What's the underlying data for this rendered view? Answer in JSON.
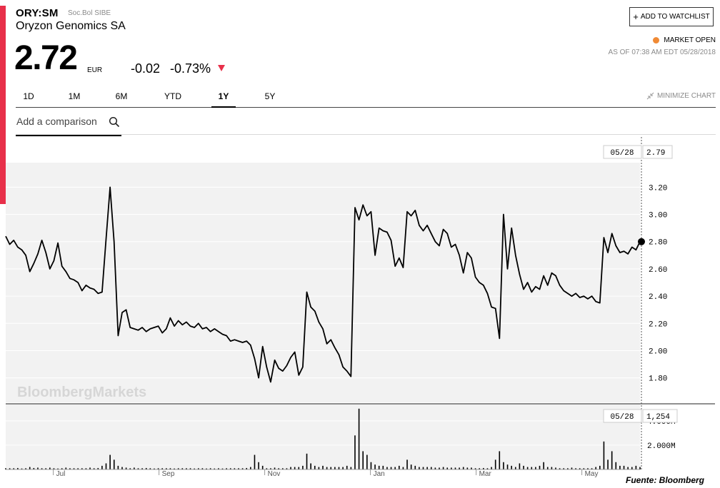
{
  "header": {
    "ticker": "ORY:SM",
    "exchange": "Soc.Bol SIBE",
    "company": "Oryzon Genomics SA",
    "price": "2.72",
    "currency": "EUR",
    "change": "-0.02",
    "change_pct": "-0.73%",
    "watchlist_label": "ADD TO WATCHLIST",
    "market_status": "MARKET OPEN",
    "as_of": "AS OF 07:38 AM EDT 05/28/2018",
    "status_color": "#f08a35",
    "down_color": "#e8304a"
  },
  "tabs": [
    {
      "label": "1D",
      "active": false
    },
    {
      "label": "1M",
      "active": false
    },
    {
      "label": "6M",
      "active": false
    },
    {
      "label": "YTD",
      "active": false
    },
    {
      "label": "1Y",
      "active": true
    },
    {
      "label": "5Y",
      "active": false
    }
  ],
  "minimize_label": "MINIMIZE CHART",
  "comparison_placeholder": "Add a comparison",
  "watermark": "BloombergMarkets",
  "source": "Fuente: Bloomberg",
  "chart_data": [
    {
      "type": "line",
      "series": [
        {
          "values": [
            2.84,
            2.78,
            2.81,
            2.76,
            2.74,
            2.7,
            2.58,
            2.64,
            2.71,
            2.81,
            2.72,
            2.6,
            2.66,
            2.79,
            2.62,
            2.58,
            2.53,
            2.52,
            2.5,
            2.44,
            2.48,
            2.46,
            2.45,
            2.42,
            2.43,
            2.82,
            3.2,
            2.8,
            2.11,
            2.28,
            2.3,
            2.17,
            2.16,
            2.15,
            2.17,
            2.14,
            2.16,
            2.17,
            2.18,
            2.13,
            2.16,
            2.24,
            2.18,
            2.22,
            2.19,
            2.21,
            2.18,
            2.17,
            2.2,
            2.16,
            2.17,
            2.14,
            2.16,
            2.14,
            2.12,
            2.11,
            2.07,
            2.08,
            2.07,
            2.06,
            2.07,
            2.04,
            1.94,
            1.8,
            2.03,
            1.88,
            1.77,
            1.93,
            1.87,
            1.85,
            1.89,
            1.95,
            1.99,
            1.82,
            1.88,
            2.43,
            2.32,
            2.29,
            2.21,
            2.16,
            2.05,
            2.08,
            2.02,
            1.97,
            1.88,
            1.85,
            1.81,
            3.05,
            2.96,
            3.07,
            2.99,
            3.02,
            2.7,
            2.9,
            2.88,
            2.87,
            2.81,
            2.62,
            2.68,
            2.61,
            3.02,
            2.99,
            3.03,
            2.92,
            2.88,
            2.92,
            2.86,
            2.8,
            2.77,
            2.89,
            2.86,
            2.76,
            2.78,
            2.7,
            2.57,
            2.72,
            2.68,
            2.54,
            2.5,
            2.48,
            2.42,
            2.32,
            2.31,
            2.09,
            3.0,
            2.6,
            2.9,
            2.7,
            2.56,
            2.45,
            2.5,
            2.43,
            2.47,
            2.45,
            2.55,
            2.48,
            2.57,
            2.55,
            2.48,
            2.44,
            2.42,
            2.4,
            2.42,
            2.39,
            2.4,
            2.38,
            2.4,
            2.36,
            2.35,
            2.83,
            2.72,
            2.86,
            2.77,
            2.72,
            2.73,
            2.71,
            2.76,
            2.74,
            2.8
          ]
        }
      ],
      "x_ticks": [
        "Jul",
        "Sep",
        "Nov",
        "Jan",
        "Mar",
        "May"
      ],
      "y_ticks": [
        "3.20",
        "3.00",
        "2.80",
        "2.60",
        "2.40",
        "2.20",
        "2.00",
        "1.80"
      ],
      "ylim": [
        1.62,
        3.38
      ],
      "last_date": "05/28",
      "last_value": "2.79",
      "grid": true
    },
    {
      "type": "bar",
      "series": [
        {
          "values": [
            0.1,
            0.1,
            0.1,
            0.12,
            0.08,
            0.1,
            0.2,
            0.12,
            0.15,
            0.1,
            0.1,
            0.15,
            0.1,
            0.08,
            0.1,
            0.15,
            0.1,
            0.1,
            0.1,
            0.1,
            0.1,
            0.15,
            0.1,
            0.12,
            0.3,
            0.5,
            1.2,
            0.8,
            0.3,
            0.2,
            0.15,
            0.1,
            0.15,
            0.1,
            0.1,
            0.12,
            0.1,
            0.08,
            0.1,
            0.1,
            0.1,
            0.1,
            0.08,
            0.1,
            0.1,
            0.1,
            0.1,
            0.08,
            0.1,
            0.1,
            0.08,
            0.1,
            0.08,
            0.1,
            0.08,
            0.1,
            0.1,
            0.1,
            0.1,
            0.1,
            0.12,
            0.2,
            1.2,
            0.6,
            0.3,
            0.1,
            0.1,
            0.15,
            0.1,
            0.1,
            0.1,
            0.2,
            0.2,
            0.2,
            0.3,
            1.3,
            0.5,
            0.3,
            0.2,
            0.3,
            0.2,
            0.2,
            0.2,
            0.2,
            0.2,
            0.3,
            0.2,
            2.8,
            5.0,
            1.5,
            1.2,
            0.6,
            0.4,
            0.3,
            0.3,
            0.2,
            0.2,
            0.2,
            0.3,
            0.2,
            0.8,
            0.4,
            0.3,
            0.2,
            0.2,
            0.2,
            0.2,
            0.15,
            0.15,
            0.2,
            0.15,
            0.15,
            0.15,
            0.15,
            0.2,
            0.15,
            0.15,
            0.1,
            0.1,
            0.12,
            0.1,
            0.2,
            0.8,
            1.5,
            0.6,
            0.4,
            0.3,
            0.2,
            0.5,
            0.3,
            0.2,
            0.2,
            0.2,
            0.3,
            0.6,
            0.2,
            0.2,
            0.15,
            0.1,
            0.1,
            0.1,
            0.15,
            0.1,
            0.1,
            0.1,
            0.1,
            0.1,
            0.2,
            0.3,
            2.3,
            0.8,
            1.5,
            0.6,
            0.3,
            0.3,
            0.2,
            0.2,
            0.3,
            0.2
          ]
        }
      ],
      "y_ticks": [
        "4.000M",
        "2.000M"
      ],
      "ylim": [
        0,
        5.4
      ],
      "last_date": "05/28",
      "last_value": "1,254"
    }
  ]
}
